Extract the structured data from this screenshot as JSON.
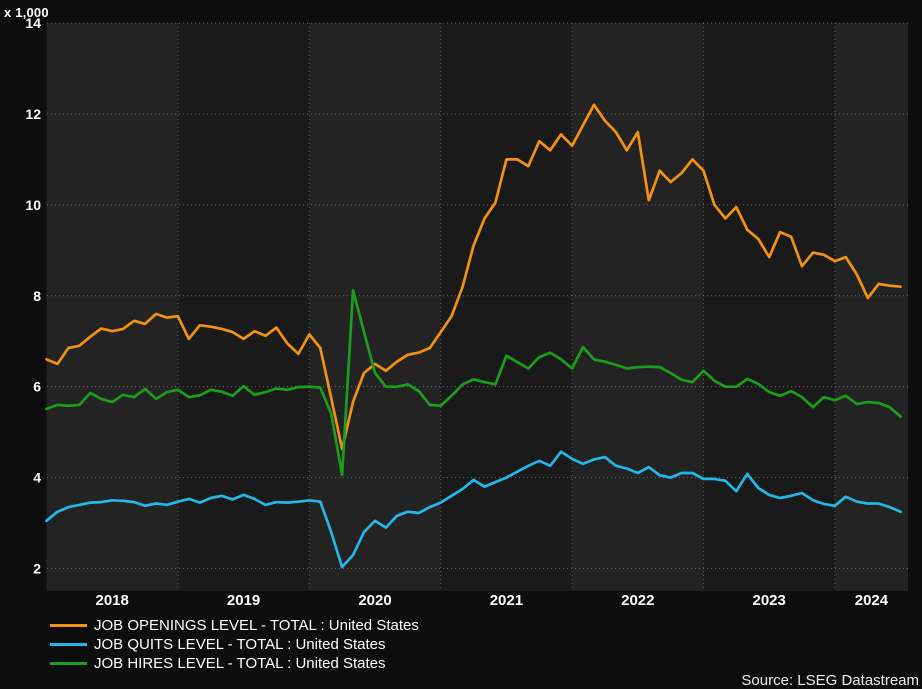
{
  "source_label": "Source: LSEG Datastream",
  "chart_data": {
    "type": "line",
    "title": "",
    "y_axis_multiplier": "x 1,000",
    "frequency": "monthly",
    "x_range": [
      "2018-01",
      "2024-07"
    ],
    "x_tick_labels": [
      "2018",
      "2019",
      "2020",
      "2021",
      "2022",
      "2023",
      "2024"
    ],
    "y_ticks": [
      2,
      4,
      6,
      8,
      10,
      12,
      14
    ],
    "ylim": [
      2,
      14
    ],
    "grid": "dotted",
    "legend_position": "bottom-left",
    "series": [
      {
        "name": "JOB OPENINGS LEVEL - TOTAL : United States",
        "color": "#F29211",
        "values": [
          6.6,
          6.5,
          6.85,
          6.9,
          7.1,
          7.28,
          7.22,
          7.27,
          7.45,
          7.38,
          7.6,
          7.52,
          7.55,
          7.05,
          7.35,
          7.32,
          7.27,
          7.2,
          7.05,
          7.22,
          7.12,
          7.3,
          6.95,
          6.72,
          7.15,
          6.85,
          5.75,
          4.63,
          5.67,
          6.3,
          6.5,
          6.35,
          6.55,
          6.7,
          6.75,
          6.85,
          7.2,
          7.55,
          8.2,
          9.1,
          9.7,
          10.05,
          11.0,
          11.0,
          10.85,
          11.4,
          11.2,
          11.55,
          11.3,
          11.75,
          12.2,
          11.85,
          11.6,
          11.2,
          11.6,
          10.1,
          10.75,
          10.5,
          10.7,
          11.0,
          10.75,
          10.0,
          9.7,
          9.95,
          9.45,
          9.25,
          8.85,
          9.4,
          9.3,
          8.65,
          8.95,
          8.9,
          8.76,
          8.85,
          8.47,
          7.95,
          8.26,
          8.22,
          8.2
        ]
      },
      {
        "name": "JOB QUITS LEVEL - TOTAL : United States",
        "color": "#25B7E8",
        "values": [
          3.05,
          3.25,
          3.35,
          3.4,
          3.45,
          3.46,
          3.5,
          3.49,
          3.46,
          3.38,
          3.43,
          3.4,
          3.47,
          3.53,
          3.45,
          3.55,
          3.6,
          3.52,
          3.62,
          3.53,
          3.4,
          3.46,
          3.45,
          3.47,
          3.5,
          3.47,
          2.8,
          2.03,
          2.3,
          2.8,
          3.05,
          2.9,
          3.16,
          3.25,
          3.22,
          3.35,
          3.45,
          3.6,
          3.75,
          3.95,
          3.8,
          3.9,
          4.0,
          4.13,
          4.26,
          4.37,
          4.26,
          4.57,
          4.41,
          4.3,
          4.4,
          4.45,
          4.26,
          4.2,
          4.1,
          4.23,
          4.05,
          4.0,
          4.1,
          4.1,
          3.97,
          3.97,
          3.93,
          3.7,
          4.08,
          3.77,
          3.62,
          3.55,
          3.6,
          3.66,
          3.5,
          3.42,
          3.38,
          3.58,
          3.47,
          3.43,
          3.43,
          3.35,
          3.25
        ]
      },
      {
        "name": "JOB HIRES LEVEL - TOTAL : United States",
        "color": "#1B9E1B",
        "values": [
          5.51,
          5.6,
          5.58,
          5.6,
          5.86,
          5.73,
          5.66,
          5.82,
          5.77,
          5.95,
          5.73,
          5.88,
          5.93,
          5.77,
          5.81,
          5.93,
          5.89,
          5.8,
          6.01,
          5.82,
          5.88,
          5.96,
          5.93,
          5.99,
          6.0,
          5.98,
          5.4,
          4.06,
          8.12,
          7.2,
          6.3,
          6.0,
          6.0,
          6.05,
          5.9,
          5.6,
          5.58,
          5.8,
          6.05,
          6.16,
          6.1,
          6.05,
          6.68,
          6.54,
          6.4,
          6.65,
          6.75,
          6.6,
          6.4,
          6.87,
          6.6,
          6.55,
          6.48,
          6.4,
          6.43,
          6.44,
          6.43,
          6.3,
          6.15,
          6.1,
          6.35,
          6.13,
          6.0,
          6.0,
          6.17,
          6.06,
          5.88,
          5.8,
          5.9,
          5.77,
          5.55,
          5.77,
          5.7,
          5.8,
          5.62,
          5.66,
          5.64,
          5.55,
          5.34
        ]
      }
    ]
  }
}
